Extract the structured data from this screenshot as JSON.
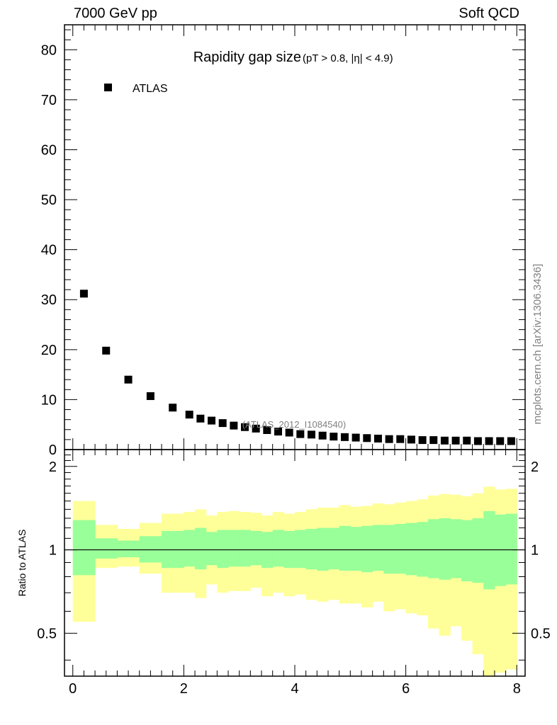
{
  "header": {
    "left": "7000 GeV pp",
    "right": "Soft QCD"
  },
  "side_label": "mcplots.cern.ch [arXiv:1306.3436]",
  "chart_data": [
    {
      "type": "scatter",
      "title": "Rapidity gap size",
      "subtitle": "(pT > 0.8, |η| < 4.9)",
      "reference": "(ATLAS_2012_I1084540)",
      "xlim": [
        -0.15,
        8.15
      ],
      "ylim": [
        0,
        85
      ],
      "yticks": [
        0,
        10,
        20,
        30,
        40,
        50,
        60,
        70,
        80
      ],
      "legend": {
        "position": "top-left",
        "marker": "square"
      },
      "series": [
        {
          "name": "ATLAS",
          "color": "#000000",
          "x": [
            0.2,
            0.6,
            1.0,
            1.4,
            1.8,
            2.1,
            2.3,
            2.5,
            2.7,
            2.9,
            3.1,
            3.3,
            3.5,
            3.7,
            3.9,
            4.1,
            4.3,
            4.5,
            4.7,
            4.9,
            5.1,
            5.3,
            5.5,
            5.7,
            5.9,
            6.1,
            6.3,
            6.5,
            6.7,
            6.9,
            7.1,
            7.3,
            7.5,
            7.7,
            7.9
          ],
          "y": [
            31.2,
            19.8,
            14.0,
            10.7,
            8.4,
            7.0,
            6.2,
            5.8,
            5.3,
            4.8,
            4.5,
            4.2,
            3.9,
            3.6,
            3.4,
            3.1,
            3.0,
            2.8,
            2.6,
            2.5,
            2.4,
            2.3,
            2.2,
            2.1,
            2.1,
            2.0,
            1.9,
            1.9,
            1.8,
            1.8,
            1.8,
            1.7,
            1.7,
            1.7,
            1.7
          ]
        }
      ]
    },
    {
      "type": "area",
      "ylabel": "Ratio to ATLAS",
      "xlim": [
        -0.15,
        8.15
      ],
      "ylim": [
        0.35,
        2.3
      ],
      "xticks": [
        0,
        2,
        4,
        6,
        8
      ],
      "yticks": [
        0.5,
        1,
        2
      ],
      "reference_line": 1,
      "bin_edges": [
        0.0,
        0.4,
        0.8,
        1.2,
        1.6,
        2.0,
        2.2,
        2.4,
        2.6,
        2.8,
        3.0,
        3.2,
        3.4,
        3.6,
        3.8,
        4.0,
        4.2,
        4.4,
        4.6,
        4.8,
        5.0,
        5.2,
        5.4,
        5.6,
        5.8,
        6.0,
        6.2,
        6.4,
        6.6,
        6.8,
        7.0,
        7.2,
        7.4,
        7.6,
        7.8,
        8.0
      ],
      "bands": [
        {
          "color": "#ffff99",
          "lower": [
            0.55,
            0.86,
            0.87,
            0.82,
            0.7,
            0.7,
            0.67,
            0.75,
            0.7,
            0.71,
            0.71,
            0.73,
            0.68,
            0.7,
            0.68,
            0.69,
            0.66,
            0.65,
            0.66,
            0.64,
            0.64,
            0.62,
            0.65,
            0.6,
            0.61,
            0.59,
            0.58,
            0.52,
            0.49,
            0.53,
            0.47,
            0.42,
            0.33,
            0.36,
            0.37
          ],
          "upper": [
            1.5,
            1.23,
            1.19,
            1.25,
            1.35,
            1.37,
            1.4,
            1.33,
            1.37,
            1.38,
            1.37,
            1.36,
            1.33,
            1.37,
            1.35,
            1.37,
            1.4,
            1.42,
            1.42,
            1.45,
            1.43,
            1.44,
            1.47,
            1.46,
            1.48,
            1.5,
            1.52,
            1.57,
            1.59,
            1.58,
            1.56,
            1.6,
            1.69,
            1.65,
            1.66
          ]
        },
        {
          "color": "#99ff99",
          "lower": [
            0.81,
            0.93,
            0.94,
            0.9,
            0.86,
            0.87,
            0.85,
            0.88,
            0.86,
            0.87,
            0.87,
            0.88,
            0.86,
            0.87,
            0.86,
            0.86,
            0.85,
            0.84,
            0.85,
            0.84,
            0.84,
            0.83,
            0.84,
            0.82,
            0.82,
            0.81,
            0.8,
            0.79,
            0.78,
            0.79,
            0.77,
            0.76,
            0.72,
            0.74,
            0.75
          ],
          "upper": [
            1.28,
            1.1,
            1.08,
            1.12,
            1.17,
            1.18,
            1.2,
            1.16,
            1.18,
            1.18,
            1.18,
            1.17,
            1.16,
            1.18,
            1.17,
            1.18,
            1.19,
            1.2,
            1.2,
            1.22,
            1.21,
            1.22,
            1.23,
            1.23,
            1.24,
            1.25,
            1.26,
            1.29,
            1.3,
            1.29,
            1.28,
            1.3,
            1.38,
            1.34,
            1.35
          ]
        }
      ]
    }
  ]
}
